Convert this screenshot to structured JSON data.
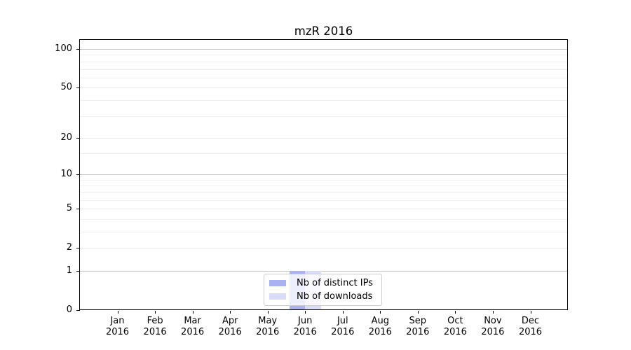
{
  "figure": {
    "title": "mzR 2016"
  },
  "chart_data": {
    "type": "bar",
    "title": "mzR 2016",
    "y_scale": "log1p",
    "ylim": [
      0,
      100
    ],
    "y_ticks": [
      0,
      1,
      2,
      5,
      10,
      20,
      50,
      100
    ],
    "y_decade_gridlines": [
      1,
      10,
      100
    ],
    "y_minor_gridlines": [
      3,
      4,
      6,
      7,
      8,
      9,
      15,
      30,
      40,
      60,
      70,
      80,
      90
    ],
    "grid": true,
    "legend_position": "lower center",
    "categories": [
      {
        "month": "Jan",
        "year": "2016"
      },
      {
        "month": "Feb",
        "year": "2016"
      },
      {
        "month": "Mar",
        "year": "2016"
      },
      {
        "month": "Apr",
        "year": "2016"
      },
      {
        "month": "May",
        "year": "2016"
      },
      {
        "month": "Jun",
        "year": "2016"
      },
      {
        "month": "Jul",
        "year": "2016"
      },
      {
        "month": "Aug",
        "year": "2016"
      },
      {
        "month": "Sep",
        "year": "2016"
      },
      {
        "month": "Oct",
        "year": "2016"
      },
      {
        "month": "Nov",
        "year": "2016"
      },
      {
        "month": "Dec",
        "year": "2016"
      }
    ],
    "series": [
      {
        "name": "Nb of distinct IPs",
        "color": "#a9b1f3",
        "values": [
          0,
          0,
          0,
          0,
          0,
          1,
          0,
          0,
          0,
          0,
          0,
          0
        ]
      },
      {
        "name": "Nb of downloads",
        "color": "#d9dcf8",
        "values": [
          0,
          0,
          0,
          0,
          0,
          1,
          0,
          0,
          0,
          0,
          0,
          0
        ]
      }
    ],
    "colors": {
      "decade_grid": "#c6c6c6",
      "tick_grid": "#e9e9e9",
      "minor_grid": "#f0f0f0",
      "axis": "#000000",
      "legend_border": "#cccccc"
    }
  }
}
